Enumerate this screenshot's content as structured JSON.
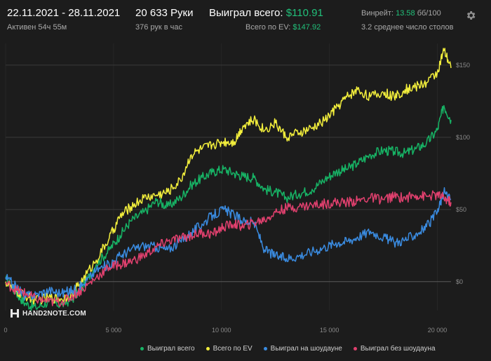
{
  "header": {
    "date_range": "22.11.2021 - 28.11.2021",
    "active_time": "Активен 54ч 55м",
    "hands": "20 633 Руки",
    "hands_per_hour": "376 рук в час",
    "won_total_label": "Выиграл всего:",
    "won_total_value": "$110.91",
    "ev_total_label": "Всего по EV:",
    "ev_total_value": "$147.92",
    "winrate_label": "Винрейт:",
    "winrate_value": "13.58",
    "winrate_suffix": "бб/100",
    "avg_tables": "3.2 среднее число столов"
  },
  "logo": {
    "text": "HAND2NOTE.COM"
  },
  "colors": {
    "background": "#1c1c1c",
    "won": "#17b365",
    "ev": "#f2ee3c",
    "showdown": "#3a8be0",
    "non_showdown": "#e0406e"
  },
  "chart_data": {
    "type": "line",
    "title": "",
    "xlabel": "",
    "ylabel": "",
    "xlim": [
      0,
      20633
    ],
    "ylim": [
      -20,
      165
    ],
    "x_ticks": [
      0,
      5000,
      10000,
      15000,
      20000
    ],
    "x_tick_labels": [
      "0",
      "5 000",
      "10 000",
      "15 000",
      "20 000"
    ],
    "y_ticks": [
      0,
      50,
      100,
      150
    ],
    "y_tick_labels": [
      "$0",
      "$50",
      "$100",
      "$150"
    ],
    "grid": true,
    "legend_position": "bottom-right",
    "series": [
      {
        "name": "Выиграл всего",
        "color": "#17b365",
        "x": [
          0,
          500,
          900,
          1400,
          2000,
          2600,
          3100,
          3600,
          4200,
          4800,
          5300,
          5800,
          6400,
          7000,
          7500,
          8100,
          8600,
          9100,
          9600,
          10100,
          10600,
          11000,
          11500,
          12000,
          12500,
          13000,
          13600,
          14200,
          14800,
          15300,
          15800,
          16300,
          16900,
          17500,
          18000,
          18500,
          19000,
          19500,
          20000,
          20300,
          20633
        ],
        "y": [
          2,
          -8,
          -15,
          -18,
          -14,
          -16,
          -12,
          -3,
          12,
          22,
          32,
          42,
          48,
          56,
          52,
          58,
          67,
          72,
          76,
          78,
          75,
          73,
          72,
          64,
          62,
          58,
          61,
          64,
          71,
          76,
          78,
          82,
          88,
          91,
          90,
          89,
          92,
          96,
          105,
          122,
          112
        ]
      },
      {
        "name": "Всего по EV",
        "color": "#f2ee3c",
        "x": [
          0,
          500,
          900,
          1400,
          2000,
          2600,
          3100,
          3600,
          4200,
          4800,
          5300,
          5800,
          6400,
          7000,
          7500,
          8100,
          8600,
          9100,
          9600,
          10100,
          10600,
          11000,
          11500,
          12000,
          12500,
          13000,
          13600,
          14200,
          14800,
          15300,
          15800,
          16300,
          16900,
          17500,
          18000,
          18500,
          19000,
          19500,
          20000,
          20300,
          20633
        ],
        "y": [
          0,
          -7,
          -10,
          -13,
          -11,
          -12,
          -8,
          2,
          15,
          30,
          45,
          52,
          58,
          60,
          62,
          70,
          88,
          92,
          95,
          97,
          97,
          108,
          112,
          105,
          110,
          100,
          103,
          106,
          112,
          120,
          128,
          133,
          128,
          131,
          128,
          133,
          135,
          138,
          145,
          160,
          148
        ]
      },
      {
        "name": "Выиграл на шоудауне",
        "color": "#3a8be0",
        "x": [
          0,
          500,
          900,
          1400,
          2000,
          2600,
          3100,
          3600,
          4200,
          4800,
          5300,
          5800,
          6400,
          7000,
          7500,
          8100,
          8600,
          9100,
          9600,
          10100,
          10600,
          11000,
          11500,
          12000,
          12500,
          13000,
          13600,
          14200,
          14800,
          15300,
          15800,
          16300,
          16900,
          17500,
          18000,
          18500,
          19000,
          19500,
          20000,
          20300,
          20633
        ],
        "y": [
          3,
          -4,
          -10,
          -9,
          -6,
          -8,
          -6,
          -2,
          8,
          12,
          18,
          22,
          25,
          24,
          22,
          28,
          34,
          40,
          46,
          50,
          46,
          42,
          41,
          22,
          18,
          16,
          18,
          21,
          24,
          27,
          28,
          31,
          35,
          31,
          27,
          29,
          33,
          38,
          48,
          62,
          57
        ]
      },
      {
        "name": "Выиграл без шоудауна",
        "color": "#e0406e",
        "x": [
          0,
          500,
          900,
          1400,
          2000,
          2600,
          3100,
          3600,
          4200,
          4800,
          5300,
          5800,
          6400,
          7000,
          7500,
          8100,
          8600,
          9100,
          9600,
          10100,
          10600,
          11000,
          11500,
          12000,
          12500,
          13000,
          13600,
          14200,
          14800,
          15300,
          15800,
          16300,
          16900,
          17500,
          18000,
          18500,
          19000,
          19500,
          20000,
          20300,
          20633
        ],
        "y": [
          -1,
          -6,
          -8,
          -12,
          -14,
          -14,
          -10,
          -5,
          3,
          10,
          12,
          14,
          18,
          24,
          28,
          30,
          32,
          34,
          33,
          38,
          40,
          38,
          41,
          43,
          48,
          51,
          52,
          53,
          54,
          55,
          55,
          56,
          58,
          57,
          59,
          58,
          60,
          59,
          60,
          58,
          55
        ]
      }
    ]
  }
}
